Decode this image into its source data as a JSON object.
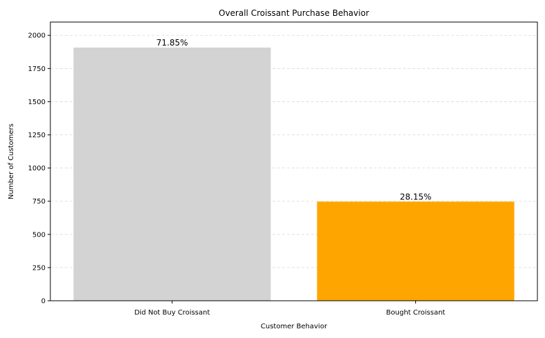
{
  "chart_data": {
    "type": "bar",
    "title": "Overall Croissant Purchase Behavior",
    "xlabel": "Customer Behavior",
    "ylabel": "Number of Customers",
    "categories": [
      "Did Not Buy Croissant",
      "Bought Croissant"
    ],
    "values": [
      1908,
      747
    ],
    "data_labels": [
      "71.85%",
      "28.15%"
    ],
    "colors": [
      "#d3d3d3",
      "#ffa500"
    ],
    "ylim": [
      0,
      2100
    ],
    "yticks": [
      0,
      250,
      500,
      750,
      1000,
      1250,
      1500,
      1750,
      2000
    ],
    "grid": "y-dashed",
    "grid_color": "#d9d9d9"
  }
}
